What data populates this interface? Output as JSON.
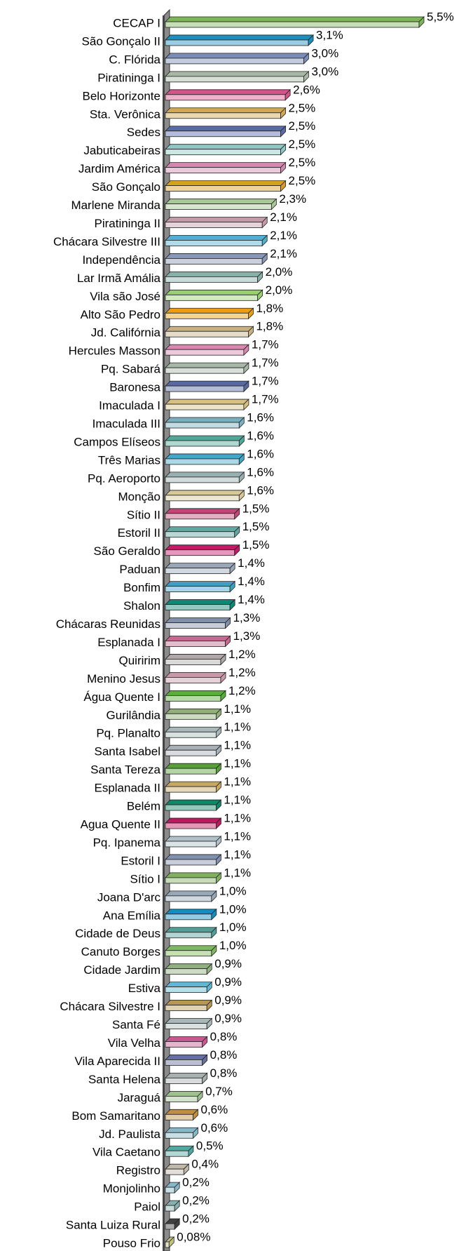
{
  "chart_data": {
    "type": "bar",
    "orientation": "horizontal",
    "categories": [
      "CECAP I",
      "São Gonçalo II",
      "C. Flórida",
      "Piratininga I",
      "Belo Horizonte",
      "Sta. Verônica",
      "Sedes",
      "Jabuticabeiras",
      "Jardim América",
      "São Gonçalo",
      "Marlene Miranda",
      "Piratininga II",
      "Chácara Silvestre III",
      "Independência",
      "Lar Irmã Amália",
      "Vila são José",
      "Alto São Pedro",
      "Jd. Califórnia",
      "Hercules Masson",
      "Pq. Sabará",
      "Baronesa",
      "Imaculada I",
      "Imaculada III",
      "Campos Elíseos",
      "Três Marias",
      "Pq. Aeroporto",
      "Monção",
      "Sítio II",
      "Estoril II",
      "São Geraldo",
      "Paduan",
      "Bonfim",
      "Shalon",
      "Chácaras Reunidas",
      "Esplanada I",
      "Quiririm",
      "Menino Jesus",
      "Água Quente I",
      "Gurilândia",
      "Pq. Planalto",
      "Santa Isabel",
      "Santa Tereza",
      "Esplanada II",
      "Belém",
      "Agua Quente II",
      "Pq. Ipanema",
      "Estoril I",
      "Sítio I",
      "Joana D'arc",
      "Ana Emília",
      "Cidade de Deus",
      "Canuto Borges",
      "Cidade Jardim",
      "Estiva",
      "Chácara Silvestre I",
      "Santa Fé",
      "Vila Velha",
      "Vila Aparecida II",
      "Santa Helena",
      "Jaraguá",
      "Bom Samaritano",
      "Jd. Paulista",
      "Vila Caetano",
      "Registro",
      "Monjolinho",
      "Paiol",
      "Santa Luiza Rural",
      "Pouso Frio"
    ],
    "values": [
      5.5,
      3.1,
      3.0,
      3.0,
      2.6,
      2.5,
      2.5,
      2.5,
      2.5,
      2.5,
      2.3,
      2.1,
      2.1,
      2.1,
      2.0,
      2.0,
      1.8,
      1.8,
      1.7,
      1.7,
      1.7,
      1.7,
      1.6,
      1.6,
      1.6,
      1.6,
      1.6,
      1.5,
      1.5,
      1.5,
      1.4,
      1.4,
      1.4,
      1.3,
      1.3,
      1.2,
      1.2,
      1.2,
      1.1,
      1.1,
      1.1,
      1.1,
      1.1,
      1.1,
      1.1,
      1.1,
      1.1,
      1.1,
      1.0,
      1.0,
      1.0,
      1.0,
      0.9,
      0.9,
      0.9,
      0.9,
      0.8,
      0.8,
      0.8,
      0.7,
      0.6,
      0.6,
      0.5,
      0.4,
      0.2,
      0.2,
      0.2,
      0.08
    ],
    "value_labels": [
      "5,5%",
      "3,1%",
      "3,0%",
      "3,0%",
      "2,6%",
      "2,5%",
      "2,5%",
      "2,5%",
      "2,5%",
      "2,5%",
      "2,3%",
      "2,1%",
      "2,1%",
      "2,1%",
      "2,0%",
      "2,0%",
      "1,8%",
      "1,8%",
      "1,7%",
      "1,7%",
      "1,7%",
      "1,7%",
      "1,6%",
      "1,6%",
      "1,6%",
      "1,6%",
      "1,6%",
      "1,5%",
      "1,5%",
      "1,5%",
      "1,4%",
      "1,4%",
      "1,4%",
      "1,3%",
      "1,3%",
      "1,2%",
      "1,2%",
      "1,2%",
      "1,1%",
      "1,1%",
      "1,1%",
      "1,1%",
      "1,1%",
      "1,1%",
      "1,1%",
      "1,1%",
      "1,1%",
      "1,1%",
      "1,0%",
      "1,0%",
      "1,0%",
      "1,0%",
      "0,9%",
      "0,9%",
      "0,9%",
      "0,9%",
      "0,8%",
      "0,8%",
      "0,8%",
      "0,7%",
      "0,6%",
      "0,6%",
      "0,5%",
      "0,4%",
      "0,2%",
      "0,2%",
      "0,2%",
      "0,08%"
    ],
    "colors": [
      "#7fb55a",
      "#1a8fc0",
      "#7a8db8",
      "#a9b8a6",
      "#d6538a",
      "#d4a850",
      "#5a6aa8",
      "#8cc9c4",
      "#d08ab0",
      "#d9a020",
      "#a8c898",
      "#c49aa8",
      "#4fb0d0",
      "#8898b8",
      "#88b0a8",
      "#98d070",
      "#e8a010",
      "#c8b080",
      "#d888b0",
      "#a8b8a8",
      "#5868a0",
      "#d8c080",
      "#78b0c0",
      "#50a898",
      "#40a8c8",
      "#98b0b0",
      "#d8c898",
      "#c04878",
      "#60a8a0",
      "#c81868",
      "#98a8b8",
      "#40a0c0",
      "#108878",
      "#8090a8",
      "#c86890",
      "#b0a8a8",
      "#c898a8",
      "#58b038",
      "#90b078",
      "#a8b8b8",
      "#a8b0b8",
      "#58a038",
      "#c8a860",
      "#108868",
      "#c01860",
      "#b0c0c8",
      "#8090b0",
      "#80b060",
      "#98a8b8",
      "#1090c0",
      "#50a098",
      "#80b860",
      "#90b080",
      "#60b8d0",
      "#b89850",
      "#a8b8b8",
      "#c85890",
      "#6870a0",
      "#a8b0b0",
      "#a0c090",
      "#c09040",
      "#88b8c8",
      "#50a8a0",
      "#c0b8a8",
      "#88b8c8",
      "#88b0b0",
      "#404040",
      "#c0c080"
    ]
  }
}
